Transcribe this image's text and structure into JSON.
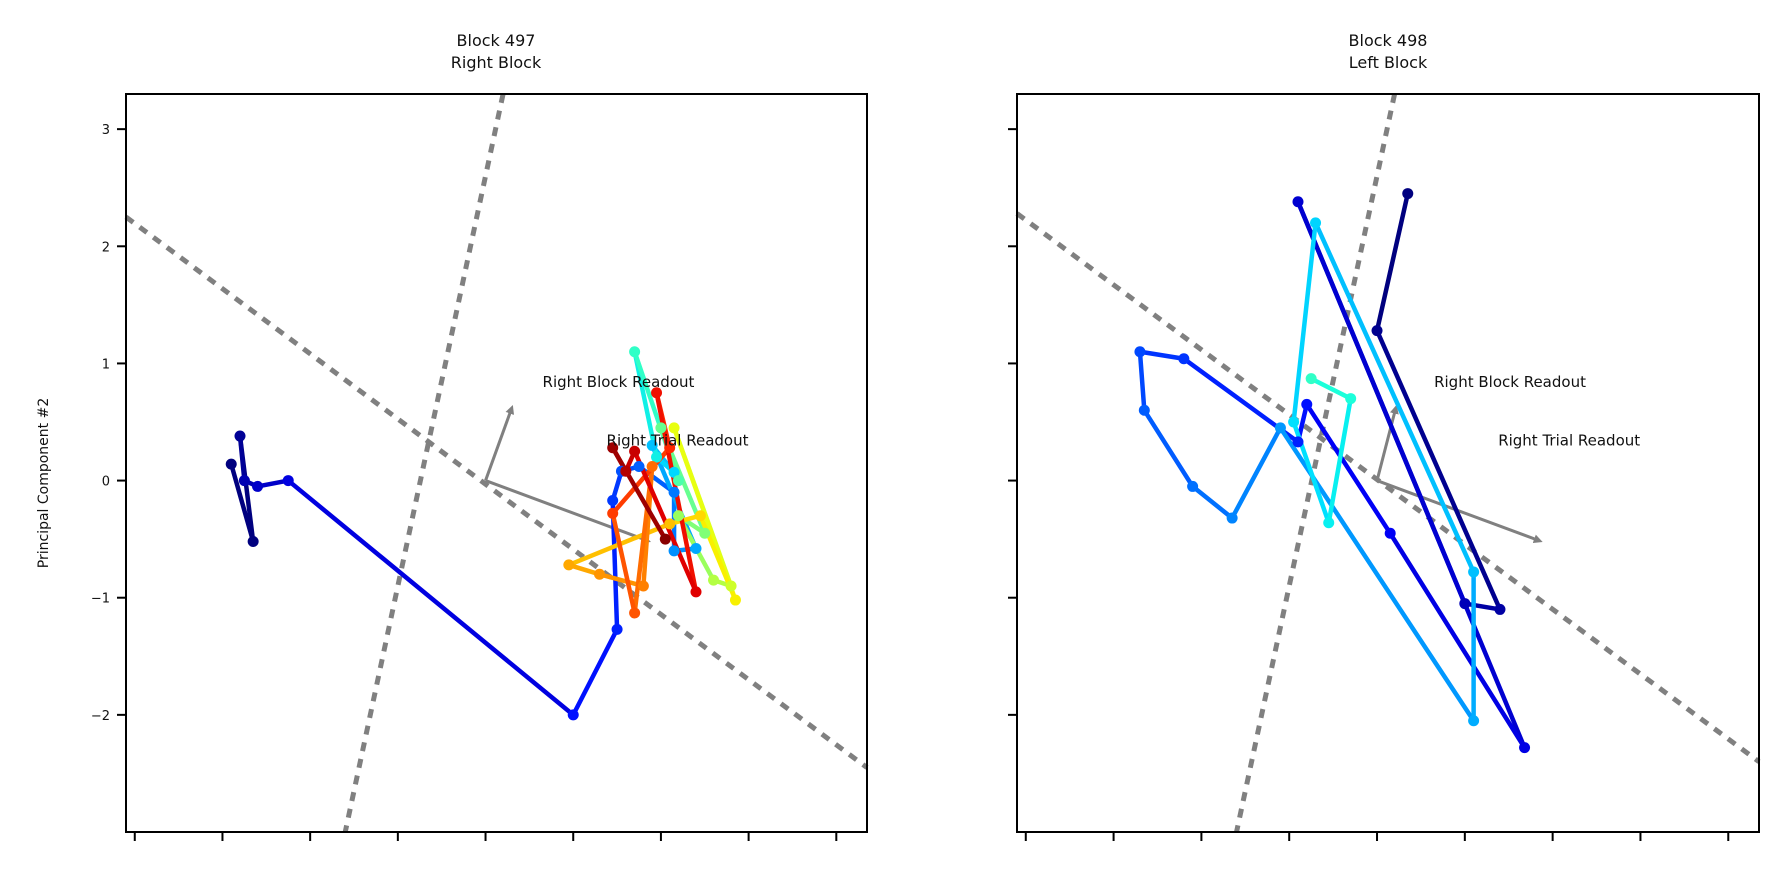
{
  "chart_data": {
    "type": "line",
    "ylabel": "Principal Component #2",
    "ylim": [
      -3,
      3.3
    ],
    "xlim": [
      -5.2,
      3.25
    ],
    "xticks": [
      -5.1,
      -4.1,
      -3.1,
      -2.1,
      -1.1,
      -0.1,
      0.9,
      1.9,
      2.9
    ],
    "yticks": [
      3,
      2,
      1,
      0,
      -1,
      -2
    ],
    "ytick_labels": [
      "3",
      "2",
      "1",
      "0",
      "−1",
      "−2"
    ],
    "grid": false,
    "subplots": [
      {
        "title_line1": "Block 497",
        "title_line2": "Right Block",
        "show_ytick_labels": true,
        "dashed_lines": [
          {
            "x1": -5.2,
            "y1": 2.25,
            "x2": 3.25,
            "y2": -2.45
          },
          {
            "x1": -0.9,
            "y1": 3.3,
            "x2": -2.7,
            "y2": -3.0
          }
        ],
        "arrows": [
          {
            "x1": -1.1,
            "y1": 0.0,
            "x2": -0.82,
            "y2": 0.58
          },
          {
            "x1": -1.1,
            "y1": 0.0,
            "x2": 0.7,
            "y2": -0.5
          }
        ],
        "annotations": [
          {
            "text": "Right Block Readout",
            "x": -0.45,
            "y": 0.8
          },
          {
            "text": "Right Trial Readout",
            "x": 0.28,
            "y": 0.3
          }
        ],
        "trajectory": [
          {
            "x": -4.0,
            "y": 0.14,
            "color": "#00007f"
          },
          {
            "x": -3.75,
            "y": -0.52,
            "color": "#00007f"
          },
          {
            "x": -3.9,
            "y": 0.38,
            "color": "#000096"
          },
          {
            "x": -3.85,
            "y": 0.0,
            "color": "#0000b2"
          },
          {
            "x": -3.7,
            "y": -0.05,
            "color": "#0000c8"
          },
          {
            "x": -3.35,
            "y": 0.0,
            "color": "#0000e0"
          },
          {
            "x": -0.1,
            "y": -2.0,
            "color": "#0010ff"
          },
          {
            "x": 0.4,
            "y": -1.27,
            "color": "#0020ff"
          },
          {
            "x": 0.35,
            "y": -0.17,
            "color": "#0038ff"
          },
          {
            "x": 0.45,
            "y": 0.08,
            "color": "#0050ff"
          },
          {
            "x": 0.65,
            "y": 0.12,
            "color": "#0060ff"
          },
          {
            "x": 1.05,
            "y": -0.1,
            "color": "#0078ff"
          },
          {
            "x": 1.05,
            "y": -0.6,
            "color": "#0090ff"
          },
          {
            "x": 1.3,
            "y": -0.58,
            "color": "#00a8ff"
          },
          {
            "x": 0.8,
            "y": 0.3,
            "color": "#00c0ff"
          },
          {
            "x": 1.05,
            "y": 0.07,
            "color": "#00d8ff"
          },
          {
            "x": 0.85,
            "y": 0.2,
            "color": "#10f0e6"
          },
          {
            "x": 0.6,
            "y": 1.1,
            "color": "#30ffc7"
          },
          {
            "x": 1.1,
            "y": 0.0,
            "color": "#4bffab"
          },
          {
            "x": 0.9,
            "y": 0.45,
            "color": "#66ff90"
          },
          {
            "x": 1.4,
            "y": -0.45,
            "color": "#80ff76"
          },
          {
            "x": 1.1,
            "y": -0.3,
            "color": "#9aff5c"
          },
          {
            "x": 1.5,
            "y": -0.85,
            "color": "#b4ff43"
          },
          {
            "x": 1.7,
            "y": -0.9,
            "color": "#ceff29"
          },
          {
            "x": 1.05,
            "y": 0.45,
            "color": "#e8ff10"
          },
          {
            "x": 1.75,
            "y": -1.02,
            "color": "#f8f000"
          },
          {
            "x": 1.35,
            "y": -0.3,
            "color": "#ffd800"
          },
          {
            "x": 1.0,
            "y": -0.37,
            "color": "#ffc000"
          },
          {
            "x": -0.15,
            "y": -0.72,
            "color": "#ffa800"
          },
          {
            "x": 0.2,
            "y": -0.8,
            "color": "#ff9400"
          },
          {
            "x": 0.7,
            "y": -0.9,
            "color": "#ff8000"
          },
          {
            "x": 0.8,
            "y": 0.12,
            "color": "#ff6c00"
          },
          {
            "x": 0.6,
            "y": -1.13,
            "color": "#ff5400"
          },
          {
            "x": 0.35,
            "y": -0.28,
            "color": "#ff3c00"
          },
          {
            "x": 1.0,
            "y": 0.28,
            "color": "#ff2800"
          },
          {
            "x": 0.85,
            "y": 0.75,
            "color": "#f01000"
          },
          {
            "x": 1.3,
            "y": -0.95,
            "color": "#e00000"
          },
          {
            "x": 0.6,
            "y": 0.25,
            "color": "#c80000"
          },
          {
            "x": 0.5,
            "y": 0.08,
            "color": "#b40000"
          },
          {
            "x": 0.35,
            "y": 0.28,
            "color": "#9e0000"
          },
          {
            "x": 0.95,
            "y": -0.5,
            "color": "#880000"
          }
        ]
      },
      {
        "title_line1": "Block 498",
        "title_line2": "Left Block",
        "show_ytick_labels": false,
        "dashed_lines": [
          {
            "x1": -5.2,
            "y1": 2.28,
            "x2": 3.25,
            "y2": -2.4
          },
          {
            "x1": -0.9,
            "y1": 3.3,
            "x2": -2.7,
            "y2": -3.0
          }
        ],
        "arrows": [
          {
            "x1": -1.1,
            "y1": 0.0,
            "x2": -0.9,
            "y2": 0.58
          },
          {
            "x1": -1.1,
            "y1": 0.0,
            "x2": 0.7,
            "y2": -0.5
          }
        ],
        "annotations": [
          {
            "text": "Right Block Readout",
            "x": -0.45,
            "y": 0.8
          },
          {
            "text": "Right Trial Readout",
            "x": 0.28,
            "y": 0.3
          }
        ],
        "trajectory": [
          {
            "x": -0.75,
            "y": 2.45,
            "color": "#00007f"
          },
          {
            "x": -1.1,
            "y": 1.28,
            "color": "#00008f"
          },
          {
            "x": 0.3,
            "y": -1.1,
            "color": "#0000a4"
          },
          {
            "x": -0.1,
            "y": -1.05,
            "color": "#0000b8"
          },
          {
            "x": -2.0,
            "y": 2.38,
            "color": "#0000d0"
          },
          {
            "x": 0.58,
            "y": -2.28,
            "color": "#0000e4"
          },
          {
            "x": -0.95,
            "y": -0.45,
            "color": "#0000f6"
          },
          {
            "x": -1.9,
            "y": 0.65,
            "color": "#0010ff"
          },
          {
            "x": -2.0,
            "y": 0.33,
            "color": "#0020ff"
          },
          {
            "x": -3.3,
            "y": 1.04,
            "color": "#0034ff"
          },
          {
            "x": -3.8,
            "y": 1.1,
            "color": "#0048ff"
          },
          {
            "x": -3.75,
            "y": 0.6,
            "color": "#005cff"
          },
          {
            "x": -3.2,
            "y": -0.05,
            "color": "#0070ff"
          },
          {
            "x": -2.75,
            "y": -0.32,
            "color": "#0084ff"
          },
          {
            "x": -2.2,
            "y": 0.45,
            "color": "#0098ff"
          },
          {
            "x": 0.0,
            "y": -2.05,
            "color": "#00acff"
          },
          {
            "x": 0.0,
            "y": -0.78,
            "color": "#00c0ff"
          },
          {
            "x": -1.8,
            "y": 2.2,
            "color": "#00d4ff"
          },
          {
            "x": -2.05,
            "y": 0.5,
            "color": "#00e0ff"
          },
          {
            "x": -1.65,
            "y": -0.36,
            "color": "#08f0f0"
          },
          {
            "x": -1.4,
            "y": 0.7,
            "color": "#1cffda"
          },
          {
            "x": -1.85,
            "y": 0.87,
            "color": "#30ffc7"
          }
        ]
      }
    ]
  }
}
